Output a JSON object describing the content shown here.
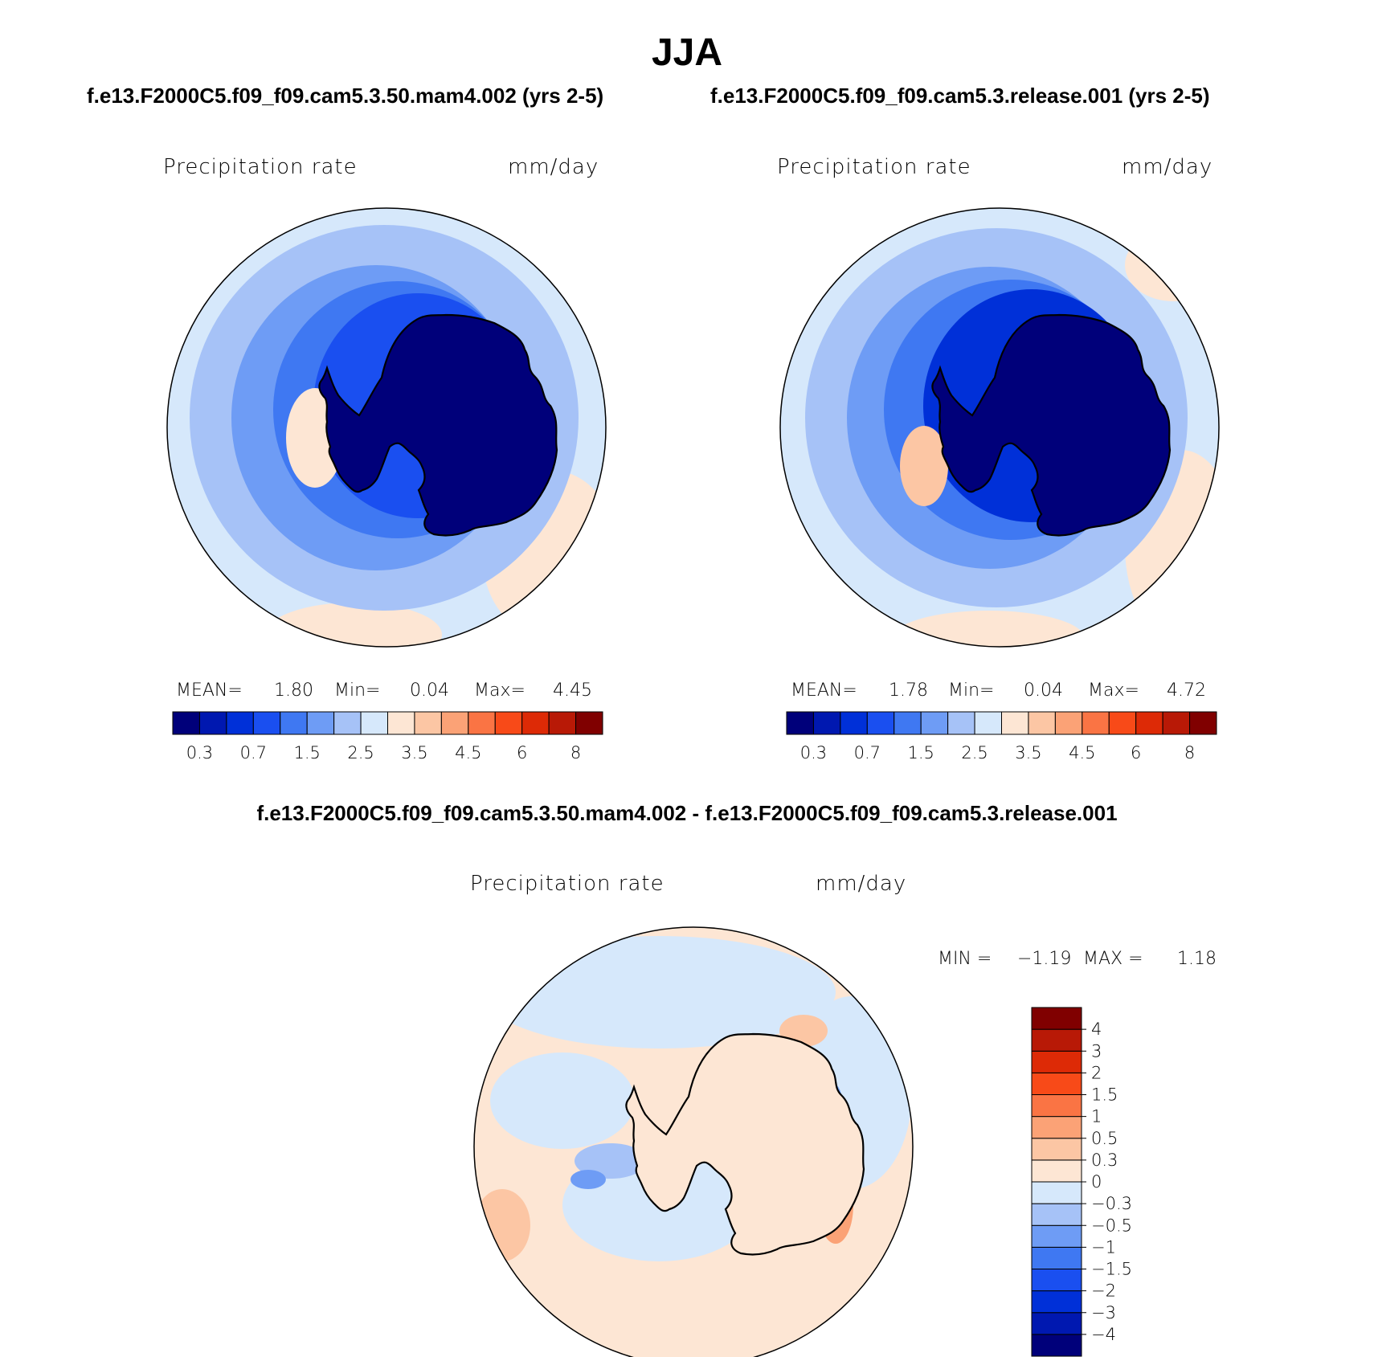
{
  "season_title": "JJA",
  "panels": [
    {
      "case": "f.e13.F2000C5.f09_f09.cam5.3.50.mam4.002 (yrs 2-5)",
      "variable": "Precipitation  rate",
      "units": "mm/day",
      "stats": {
        "mean_label": "MEAN=",
        "mean": "1.80",
        "min_label": "Min=",
        "min": "0.04",
        "max_label": "Max=",
        "max": "4.45"
      }
    },
    {
      "case": "f.e13.F2000C5.f09_f09.cam5.3.release.001 (yrs 2-5)",
      "variable": "Precipitation  rate",
      "units": "mm/day",
      "stats": {
        "mean_label": "MEAN=",
        "mean": "1.78",
        "min_label": "Min=",
        "min": "0.04",
        "max_label": "Max=",
        "max": "4.72"
      }
    }
  ],
  "difference": {
    "title": "f.e13.F2000C5.f09_f09.cam5.3.50.mam4.002 - f.e13.F2000C5.f09_f09.cam5.3.release.001",
    "variable": "Precipitation  rate",
    "units": "mm/day",
    "min_label": "MIN =",
    "min": "−1.19",
    "max_label": "MAX =",
    "max": "1.18"
  },
  "colorbar_abs": {
    "colors": [
      "#00007a",
      "#0018b0",
      "#0030d8",
      "#1a4ff0",
      "#3f78f2",
      "#6e9cf5",
      "#a6c2f7",
      "#d6e8fb",
      "#fde6d4",
      "#fcc6a4",
      "#fba276",
      "#fa7444",
      "#f84a18",
      "#dd2a06",
      "#b81906",
      "#800000"
    ],
    "labels": [
      "0.3",
      "0.7",
      "1.5",
      "2.5",
      "3.5",
      "4.5",
      "6",
      "8"
    ]
  },
  "colorbar_diff": {
    "colors": [
      "#00007a",
      "#0018b0",
      "#0030d8",
      "#1a4ff0",
      "#3f78f2",
      "#6e9cf5",
      "#a6c2f7",
      "#d6e8fb",
      "#fde6d4",
      "#fcc6a4",
      "#fba276",
      "#fa7444",
      "#f84a18",
      "#dd2a06",
      "#b81906",
      "#800000"
    ],
    "labels": [
      "−4",
      "−3",
      "−2",
      "−1.5",
      "−1",
      "−0.5",
      "−0.3",
      "0",
      "0.3",
      "0.5",
      "1",
      "1.5",
      "2",
      "3",
      "4"
    ]
  },
  "map_colors": {
    "ocean_light": "#d6e8fb",
    "ocean_mid": "#a6c2f7",
    "ocean_blue": "#6e9cf5",
    "ring_blue": "#3f78f2",
    "deep_blue": "#1a4ff0",
    "darker_blue": "#0030d8",
    "interior": "#00007a",
    "warm_light": "#fde6d4",
    "warm_mid": "#fcc6a4",
    "warm_orange": "#fba276"
  }
}
